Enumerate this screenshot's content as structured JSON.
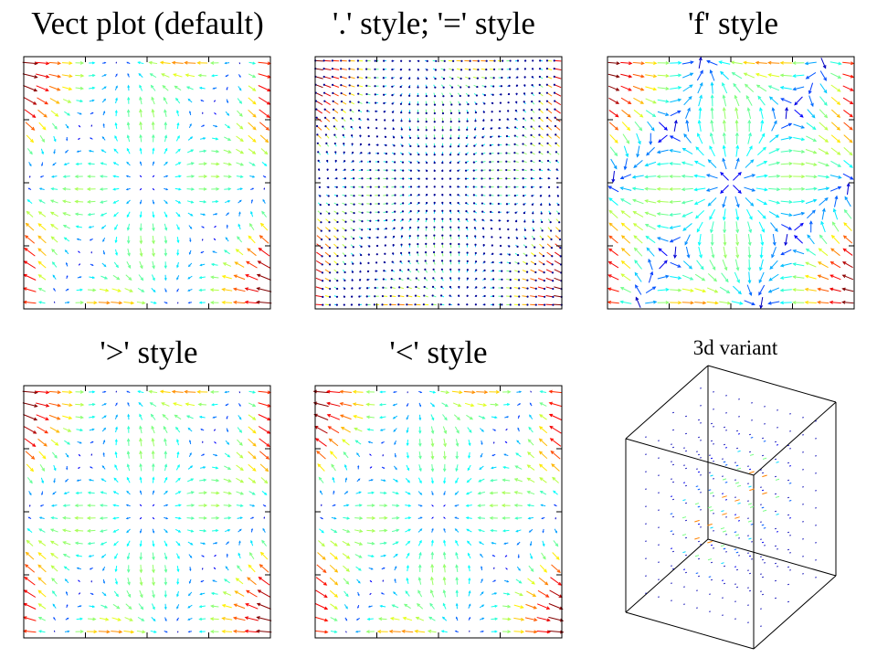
{
  "panels": [
    {
      "title": "Vect plot (default)",
      "style": "default"
    },
    {
      "title": "'.' style; '=' style",
      "style": "dot"
    },
    {
      "title": "'f' style",
      "style": "fixed"
    },
    {
      "title": "'>' style",
      "style": "arrow-gt"
    },
    {
      "title": "'<' style",
      "style": "arrow-lt"
    },
    {
      "title": "3d variant",
      "style": "3d"
    }
  ],
  "chart_data": [
    {
      "type": "vector-field",
      "title": "Vect plot (default)",
      "xlim": [
        -1,
        1
      ],
      "ylim": [
        -1,
        1
      ],
      "grid_n": 20,
      "color_scale": "jet",
      "field": "a = 3*x^2*y - y^3 + sin(pi*x)*cos(pi*y); b = cos(pi*x)*sin(pi*y)"
    },
    {
      "type": "vector-field",
      "title": "'.' style; '=' style",
      "xlim": [
        -1,
        1
      ],
      "ylim": [
        -1,
        1
      ],
      "grid_n": 30,
      "color_scale": "jet",
      "field": "a = 3*x^2*y - y^3 + sin(pi*x)*cos(pi*y); b = cos(pi*x)*sin(pi*y)"
    },
    {
      "type": "vector-field",
      "title": "'f' style",
      "xlim": [
        -1,
        1
      ],
      "ylim": [
        -1,
        1
      ],
      "grid_n": 20,
      "color_scale": "jet",
      "fixed_length": true,
      "field": "a = 3*x^2*y - y^3 + sin(pi*x)*cos(pi*y); b = cos(pi*x)*sin(pi*y)"
    },
    {
      "type": "vector-field",
      "title": "'>' style",
      "xlim": [
        -1,
        1
      ],
      "ylim": [
        -1,
        1
      ],
      "grid_n": 20,
      "color_scale": "jet",
      "field": "a = 3*x^2*y - y^3 + sin(pi*x)*cos(pi*y); b = cos(pi*x)*sin(pi*y)"
    },
    {
      "type": "vector-field",
      "title": "'<' style",
      "xlim": [
        -1,
        1
      ],
      "ylim": [
        -1,
        1
      ],
      "grid_n": 20,
      "color_scale": "jet",
      "field": "a = 3*x^2*y - y^3 + sin(pi*x)*cos(pi*y); b = cos(pi*x)*sin(pi*y)"
    },
    {
      "type": "vector-field-3d",
      "title": "3d variant",
      "xlim": [
        -1,
        1
      ],
      "ylim": [
        -1,
        1
      ],
      "zlim": [
        -1,
        1
      ],
      "grid_n": 10,
      "color_scale": "jet"
    }
  ],
  "colors": {
    "frame": "#000000",
    "background": "#ffffff",
    "jet_low": "#00008f",
    "jet_high": "#800000"
  }
}
